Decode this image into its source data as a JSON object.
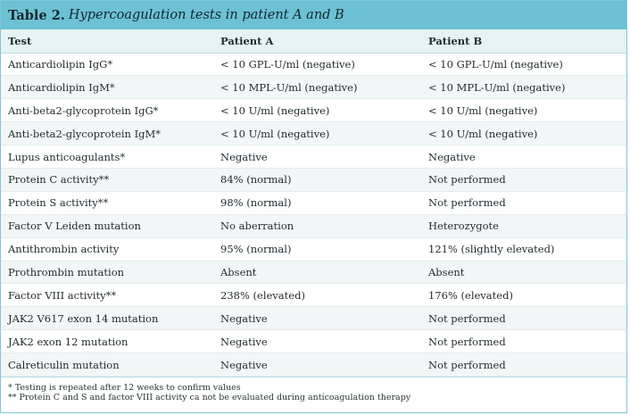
{
  "caption": {
    "label": "Table 2.",
    "title": "Hypercoagulation tests in patient A and B"
  },
  "table": {
    "headers": [
      "Test",
      "Patient A",
      "Patient B"
    ],
    "rows": [
      [
        "Anticardiolipin IgG*",
        "< 10 GPL-U/ml (negative)",
        "< 10 GPL-U/ml (negative)"
      ],
      [
        "Anticardiolipin IgM*",
        "< 10 MPL-U/ml (negative)",
        "< 10 MPL-U/ml (negative)"
      ],
      [
        "Anti-beta2-glycoprotein IgG*",
        "< 10 U/ml (negative)",
        "< 10 U/ml (negative)"
      ],
      [
        "Anti-beta2-glycoprotein IgM*",
        "< 10 U/ml (negative)",
        "< 10 U/ml (negative)"
      ],
      [
        "Lupus anticoagulants*",
        "Negative",
        "Negative"
      ],
      [
        "Protein C activity**",
        "84% (normal)",
        "Not performed"
      ],
      [
        "Protein S activity**",
        "98% (normal)",
        "Not performed"
      ],
      [
        "Factor V Leiden mutation",
        "No aberration",
        "Heterozygote"
      ],
      [
        "Antithrombin activity",
        "95% (normal)",
        "121% (slightly elevated)"
      ],
      [
        "Prothrombin mutation",
        "Absent",
        "Absent"
      ],
      [
        "Factor VIII activity**",
        "238% (elevated)",
        "176% (elevated)"
      ],
      [
        "JAK2 V617 exon 14 mutation",
        "Negative",
        "Not performed"
      ],
      [
        "JAK2 exon 12 mutation",
        "Negative",
        "Not performed"
      ],
      [
        "Calreticulin mutation",
        "Negative",
        "Not performed"
      ]
    ]
  },
  "footnotes": [
    "* Testing is repeated after 12 weeks to confirm values",
    "** Protein C and S and factor VIII activity ca not be evaluated during anticoagulation therapy"
  ]
}
